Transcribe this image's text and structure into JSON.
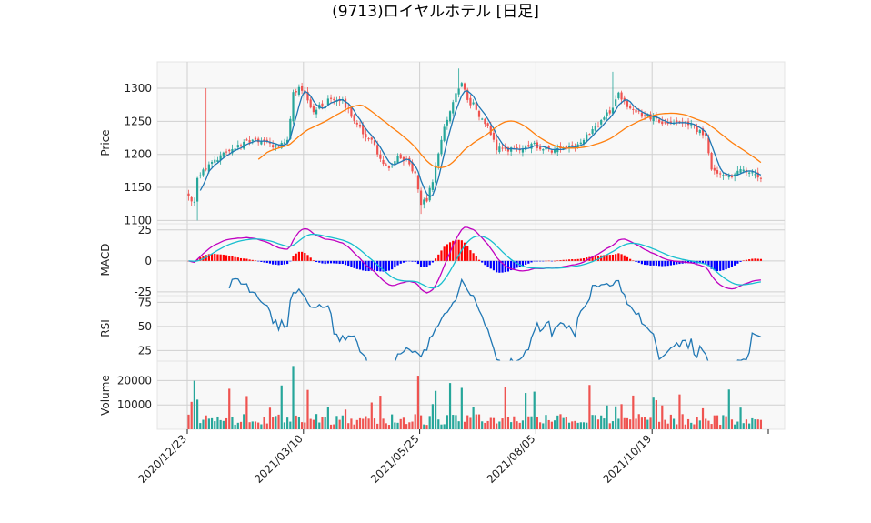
{
  "chart_data": {
    "type": "candlestick",
    "title": "(9713)ロイヤルホテル [日足]",
    "x_tick_labels": [
      "2020/12/23",
      "2021/03/10",
      "2021/05/25",
      "2021/08/05",
      "2021/10/19"
    ],
    "x_range": [
      "2020/12/23",
      "2021/12/30"
    ],
    "colors": {
      "up": "#26a69a",
      "down": "#ef5350",
      "ma_short": "#1f77b4",
      "ma_long": "#ff7f0e",
      "macd": "#c000c0",
      "signal": "#17becf",
      "hist_pos": "#ff0000",
      "hist_neg": "#0000ff",
      "rsi": "#1f77b4",
      "panel_bg": "#f8f8f8",
      "grid": "#d0d0d0"
    },
    "price": {
      "ylabel": "Price",
      "ylim": [
        1095,
        1340
      ],
      "yticks": [
        1100,
        1150,
        1200,
        1250,
        1300
      ],
      "close_anchors": [
        [
          0,
          1135
        ],
        [
          2,
          1125
        ],
        [
          3,
          1160
        ],
        [
          5,
          1175
        ],
        [
          8,
          1185
        ],
        [
          12,
          1200
        ],
        [
          16,
          1210
        ],
        [
          20,
          1222
        ],
        [
          25,
          1218
        ],
        [
          30,
          1212
        ],
        [
          34,
          1220
        ],
        [
          36,
          1290
        ],
        [
          38,
          1300
        ],
        [
          40,
          1290
        ],
        [
          43,
          1265
        ],
        [
          46,
          1275
        ],
        [
          50,
          1285
        ],
        [
          53,
          1280
        ],
        [
          56,
          1260
        ],
        [
          60,
          1235
        ],
        [
          63,
          1220
        ],
        [
          66,
          1190
        ],
        [
          69,
          1180
        ],
        [
          72,
          1200
        ],
        [
          75,
          1190
        ],
        [
          78,
          1170
        ],
        [
          80,
          1125
        ],
        [
          82,
          1130
        ],
        [
          84,
          1160
        ],
        [
          86,
          1200
        ],
        [
          88,
          1240
        ],
        [
          90,
          1265
        ],
        [
          92,
          1295
        ],
        [
          94,
          1310
        ],
        [
          96,
          1280
        ],
        [
          98,
          1275
        ],
        [
          100,
          1255
        ],
        [
          103,
          1240
        ],
        [
          106,
          1210
        ],
        [
          110,
          1205
        ],
        [
          114,
          1210
        ],
        [
          118,
          1215
        ],
        [
          122,
          1210
        ],
        [
          126,
          1205
        ],
        [
          130,
          1210
        ],
        [
          134,
          1215
        ],
        [
          138,
          1235
        ],
        [
          142,
          1250
        ],
        [
          146,
          1270
        ],
        [
          148,
          1290
        ],
        [
          150,
          1280
        ],
        [
          153,
          1265
        ],
        [
          156,
          1260
        ],
        [
          160,
          1255
        ],
        [
          164,
          1245
        ],
        [
          168,
          1250
        ],
        [
          172,
          1245
        ],
        [
          176,
          1235
        ],
        [
          178,
          1225
        ],
        [
          180,
          1180
        ],
        [
          183,
          1170
        ],
        [
          186,
          1165
        ],
        [
          189,
          1175
        ],
        [
          192,
          1175
        ],
        [
          195,
          1170
        ],
        [
          197,
          1160
        ]
      ]
    },
    "macd": {
      "ylabel": "MACD",
      "ylim": [
        -28,
        30
      ],
      "yticks": [
        -25,
        0,
        25
      ]
    },
    "rsi": {
      "ylabel": "RSI",
      "ylim": [
        14,
        82
      ],
      "yticks": [
        25,
        50,
        75
      ]
    },
    "volume": {
      "ylabel": "Volume",
      "ylim": [
        0,
        28000
      ],
      "yticks": [
        10000,
        20000
      ],
      "ytick_labels": [
        "10000",
        "20000"
      ]
    }
  }
}
